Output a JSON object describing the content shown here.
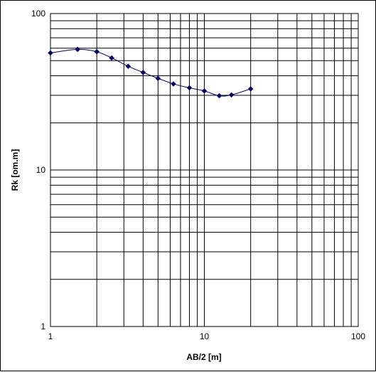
{
  "chart_data": {
    "type": "scatter",
    "title": "",
    "xlabel": "AB/2 [m]",
    "ylabel": "Rk [om.m]",
    "x_scale": "log",
    "y_scale": "log",
    "xlim": [
      1,
      100
    ],
    "ylim": [
      1,
      100
    ],
    "x_tick_labels": [
      "1",
      "10",
      "100"
    ],
    "y_tick_labels": [
      "100",
      "10",
      "1"
    ],
    "grid": true,
    "legend": "none",
    "series": [
      {
        "color": "#000066",
        "marker": "diamond",
        "line": "smooth",
        "x": [
          1.0,
          1.5,
          2.0,
          2.5,
          3.2,
          4.0,
          5.0,
          6.3,
          8.0,
          10.0,
          12.5,
          15.0,
          20.0
        ],
        "y": [
          56,
          59,
          57,
          52,
          46,
          42,
          38.5,
          35.5,
          33.5,
          32,
          29.8,
          30.2,
          33
        ]
      }
    ]
  }
}
